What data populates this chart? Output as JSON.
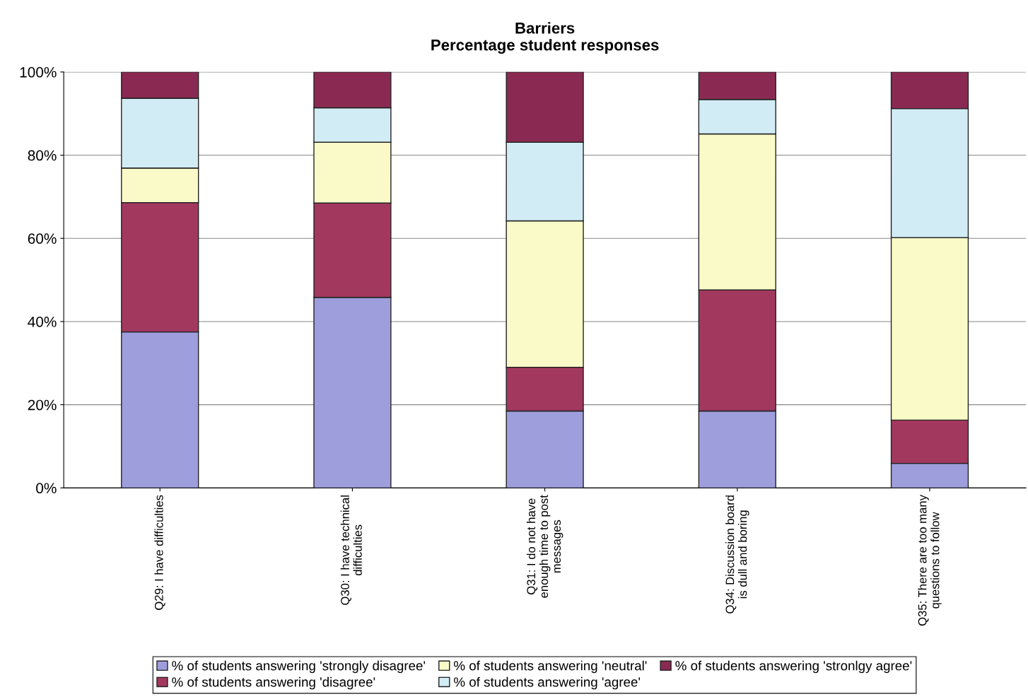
{
  "chart_data": {
    "type": "bar",
    "title": "Barriers\nPercentage student responses",
    "categories": [
      "Q29: I have difficulties",
      "Q30: I have technical\ndifficulties",
      "Q31: I do not have\nenough time to post\nmessages",
      "Q34: Discussion board\nis dull and boring",
      "Q35: There are too many\nquestions to follow"
    ],
    "stacked": true,
    "series": [
      {
        "name": "% of students answering 'strongly disagree'",
        "color": "#9e9edc",
        "values": [
          37.5,
          45.8,
          18.5,
          18.5,
          5.9
        ]
      },
      {
        "name": "% of students answering 'disagree'",
        "color": "#a3385f",
        "values": [
          31.1,
          22.7,
          10.5,
          29.1,
          10.4
        ]
      },
      {
        "name": "% of students answering 'neutral'",
        "color": "#fafac8",
        "values": [
          8.3,
          14.6,
          35.2,
          37.5,
          43.9
        ]
      },
      {
        "name": "% of students answering 'agree'",
        "color": "#d2ecf5",
        "values": [
          16.8,
          8.3,
          18.9,
          8.3,
          31.0
        ]
      },
      {
        "name": "% of students answering 'stronlgy agree'",
        "color": "#8a2a52",
        "values": [
          6.3,
          8.6,
          16.9,
          6.6,
          8.8
        ]
      }
    ],
    "ylim": [
      0,
      100
    ],
    "yticks": [
      {
        "value": 0,
        "label": "0%"
      },
      {
        "value": 20,
        "label": "20%"
      },
      {
        "value": 40,
        "label": "40%"
      },
      {
        "value": 60,
        "label": "60%"
      },
      {
        "value": 80,
        "label": "80%"
      },
      {
        "value": 100,
        "label": "100%"
      }
    ],
    "grid": "y",
    "legend": "bottom"
  }
}
